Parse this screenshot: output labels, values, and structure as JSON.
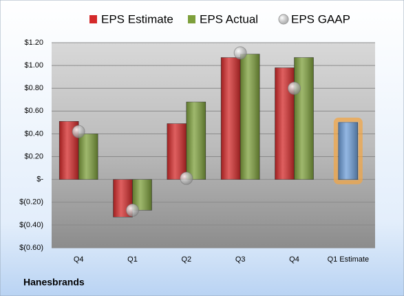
{
  "chart_data": {
    "type": "bar",
    "company": "Hanesbrands",
    "categories": [
      "Q4",
      "Q1",
      "Q2",
      "Q3",
      "Q4",
      "Q1 Estimate"
    ],
    "series": [
      {
        "name": "EPS Estimate",
        "color": "#d42a2a",
        "values": [
          0.51,
          -0.33,
          0.49,
          1.07,
          0.98,
          0.5
        ]
      },
      {
        "name": "EPS Actual",
        "color": "#7ea03c",
        "values": [
          0.4,
          -0.27,
          0.68,
          1.1,
          1.07,
          null
        ]
      },
      {
        "name": "EPS GAAP",
        "color": "#a8acb4",
        "marker": "circle",
        "values": [
          0.42,
          -0.27,
          0.01,
          1.11,
          0.8,
          null
        ]
      }
    ],
    "highlight": {
      "index": 5,
      "color": "#6e9fd9",
      "glow": "#f5a540"
    },
    "ylim": [
      -0.6,
      1.2
    ],
    "yticks": [
      {
        "value": -0.6,
        "label": "$(0.60)"
      },
      {
        "value": -0.4,
        "label": "$(0.40)"
      },
      {
        "value": -0.2,
        "label": "$(0.20)"
      },
      {
        "value": 0,
        "label": "$-"
      },
      {
        "value": 0.2,
        "label": "$0.20"
      },
      {
        "value": 0.4,
        "label": "$0.40"
      },
      {
        "value": 0.6,
        "label": "$0.60"
      },
      {
        "value": 0.8,
        "label": "$0.80"
      },
      {
        "value": 1.0,
        "label": "$1.00"
      },
      {
        "value": 1.2,
        "label": "$1.20"
      }
    ],
    "grid": true
  }
}
